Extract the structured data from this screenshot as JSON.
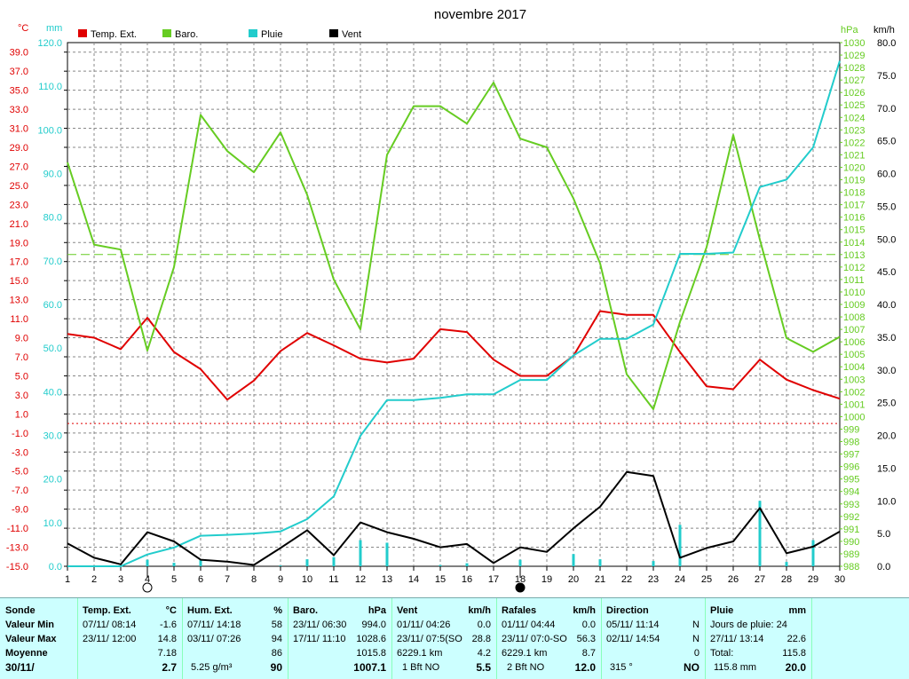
{
  "chart_data": {
    "type": "line",
    "title": "novembre 2017",
    "x": [
      1,
      2,
      3,
      4,
      5,
      6,
      7,
      8,
      9,
      10,
      11,
      12,
      13,
      14,
      15,
      16,
      17,
      18,
      19,
      20,
      21,
      22,
      23,
      24,
      25,
      26,
      27,
      28,
      29,
      30
    ],
    "axes": {
      "temp": {
        "unit": "°C",
        "ylim": [
          -15.0,
          40.0
        ],
        "ticks": [
          "-15.0",
          "-13.0",
          "-11.0",
          "-9.0",
          "-7.0",
          "-5.0",
          "-3.0",
          "-1.0",
          "1.0",
          "3.0",
          "5.0",
          "7.0",
          "9.0",
          "11.0",
          "13.0",
          "15.0",
          "17.0",
          "19.0",
          "21.0",
          "23.0",
          "25.0",
          "27.0",
          "29.0",
          "31.0",
          "33.0",
          "35.0",
          "37.0",
          "39.0"
        ]
      },
      "rain": {
        "unit": "mm",
        "ylim": [
          0,
          120
        ],
        "ticks": [
          "0.0",
          "10.0",
          "20.0",
          "30.0",
          "40.0",
          "50.0",
          "60.0",
          "70.0",
          "80.0",
          "90.0",
          "100.0",
          "110.0",
          "120.0"
        ]
      },
      "baro": {
        "unit": "hPa",
        "ylim": [
          988,
          1030
        ]
      },
      "wind": {
        "unit": "km/h",
        "ylim": [
          0,
          80
        ],
        "ticks": [
          "0.0",
          "5.0",
          "10.0",
          "15.0",
          "20.0",
          "25.0",
          "30.0",
          "35.0",
          "40.0",
          "45.0",
          "50.0",
          "55.0",
          "60.0",
          "65.0",
          "70.0",
          "75.0",
          "80.0"
        ]
      }
    },
    "legend": [
      {
        "name": "Temp. Ext.",
        "color": "#e00000"
      },
      {
        "name": "Baro.",
        "color": "#66cc22"
      },
      {
        "name": "Pluie",
        "color": "#22cccc"
      },
      {
        "name": "Vent",
        "color": "#000000"
      }
    ],
    "series": [
      {
        "name": "Temp. Ext.",
        "axis": "temp",
        "color": "#e00000",
        "values": [
          9.4,
          9.0,
          7.8,
          11.1,
          7.5,
          5.7,
          2.5,
          4.5,
          7.6,
          9.5,
          8.2,
          6.8,
          6.4,
          6.8,
          9.9,
          9.6,
          6.7,
          5.0,
          5.0,
          7.1,
          11.8,
          11.4,
          11.4,
          7.5,
          3.9,
          3.6,
          6.7,
          4.6,
          3.5,
          2.6
        ]
      },
      {
        "name": "Baro.",
        "axis": "baro",
        "color": "#66cc22",
        "values": [
          1020.4,
          1013.8,
          1013.4,
          1005.3,
          1012.0,
          1024.2,
          1021.3,
          1019.6,
          1022.8,
          1017.8,
          1011.0,
          1007.0,
          1021.0,
          1024.9,
          1024.9,
          1023.5,
          1026.8,
          1022.3,
          1021.6,
          1017.5,
          1012.3,
          1003.4,
          1000.6,
          1007.6,
          1013.6,
          1022.6,
          1014.2,
          1006.3,
          1005.2,
          1006.4
        ]
      },
      {
        "name": "Pluie",
        "axis": "rain",
        "color": "#22cccc",
        "values": [
          0.0,
          0.0,
          0.0,
          2.7,
          4.3,
          7.0,
          7.2,
          7.5,
          8.0,
          10.8,
          16.0,
          29.9,
          38.1,
          38.1,
          38.6,
          39.4,
          39.4,
          42.7,
          42.7,
          48.3,
          52.1,
          52.1,
          55.4,
          71.6,
          71.6,
          71.9,
          86.9,
          88.6,
          96.0,
          115.8
        ]
      },
      {
        "name": "Vent",
        "axis": "wind",
        "color": "#000000",
        "values": [
          3.5,
          1.3,
          0.3,
          5.2,
          3.8,
          1.0,
          0.7,
          0.2,
          2.8,
          5.5,
          1.7,
          6.7,
          5.2,
          4.2,
          2.9,
          3.4,
          0.5,
          2.9,
          2.2,
          5.8,
          9.1,
          14.4,
          13.8,
          1.3,
          2.8,
          3.8,
          8.9,
          2.0,
          3.0,
          5.3
        ]
      }
    ],
    "rain_bars": [
      0,
      0,
      0,
      1.5,
      0.8,
      1.4,
      0,
      0,
      0.2,
      1.6,
      2.1,
      6.0,
      5.4,
      0,
      0.3,
      0.7,
      0,
      1.5,
      0,
      2.8,
      1.6,
      0,
      1.2,
      9.5,
      0,
      0,
      15.0,
      1.0,
      6.0,
      0
    ],
    "reference_lines": [
      {
        "axis": "baro",
        "value": 1013.0,
        "color": "#66cc22",
        "style": "dashed"
      },
      {
        "axis": "temp",
        "value": 0.0,
        "color": "#e00000",
        "style": "dotted"
      }
    ],
    "markers": [
      {
        "day": 4,
        "symbol": "first-quarter-moon"
      },
      {
        "day": 18,
        "symbol": "new-moon"
      }
    ],
    "grid": true
  },
  "summary": {
    "sonde": {
      "title": "Sonde",
      "rows": [
        "Valeur Min",
        "Valeur Max",
        "Moyenne"
      ],
      "date": "30/11/"
    },
    "temp": {
      "title": "Temp. Ext.",
      "unit": "°C",
      "rows": [
        [
          "07/11/  08:14",
          "-1.6"
        ],
        [
          "23/11/  12:00",
          "14.8"
        ],
        [
          "",
          "7.18"
        ]
      ],
      "last": "2.7"
    },
    "hum": {
      "title": "Hum. Ext.",
      "unit": "%",
      "rows": [
        [
          "07/11/  14:18",
          "58"
        ],
        [
          "03/11/  07:26",
          "94"
        ],
        [
          "",
          "86"
        ]
      ],
      "extra": "5.25 g/m³",
      "last": "90"
    },
    "baro": {
      "title": "Baro.",
      "unit": "hPa",
      "rows": [
        [
          "23/11/  06:30",
          "994.0"
        ],
        [
          "17/11/  11:10",
          "1028.6"
        ],
        [
          "",
          "1015.8"
        ]
      ],
      "last": "1007.1"
    },
    "vent": {
      "title": "Vent",
      "unit": "km/h",
      "rows": [
        [
          "01/11/  04:26",
          "0.0"
        ],
        [
          "23/11/  07:5(SO",
          "28.8"
        ],
        [
          "6229.1 km",
          "4.2"
        ]
      ],
      "extra": "1 Bft NO",
      "last": "5.5"
    },
    "rafales": {
      "title": "Rafales",
      "unit": "km/h",
      "rows": [
        [
          "01/11/  04:44",
          "0.0"
        ],
        [
          "23/11/  07:0-SO",
          "56.3"
        ],
        [
          "6229.1 km",
          "8.7"
        ]
      ],
      "extra": "2 Bft NO",
      "last": "12.0"
    },
    "direction": {
      "title": "Direction",
      "rows": [
        [
          "05/11/  11:14",
          "N"
        ],
        [
          "02/11/  14:54",
          "N"
        ],
        [
          "",
          "0"
        ]
      ],
      "extra": "315 °",
      "last": "NO"
    },
    "pluie": {
      "title": "Pluie",
      "unit": "mm",
      "rows": [
        [
          "Jours de pluie: 24",
          ""
        ],
        [
          "27/11/  13:14",
          "22.6"
        ],
        [
          "Total:",
          "115.8"
        ]
      ],
      "extra": "115.8 mm",
      "last": "20.0"
    }
  }
}
